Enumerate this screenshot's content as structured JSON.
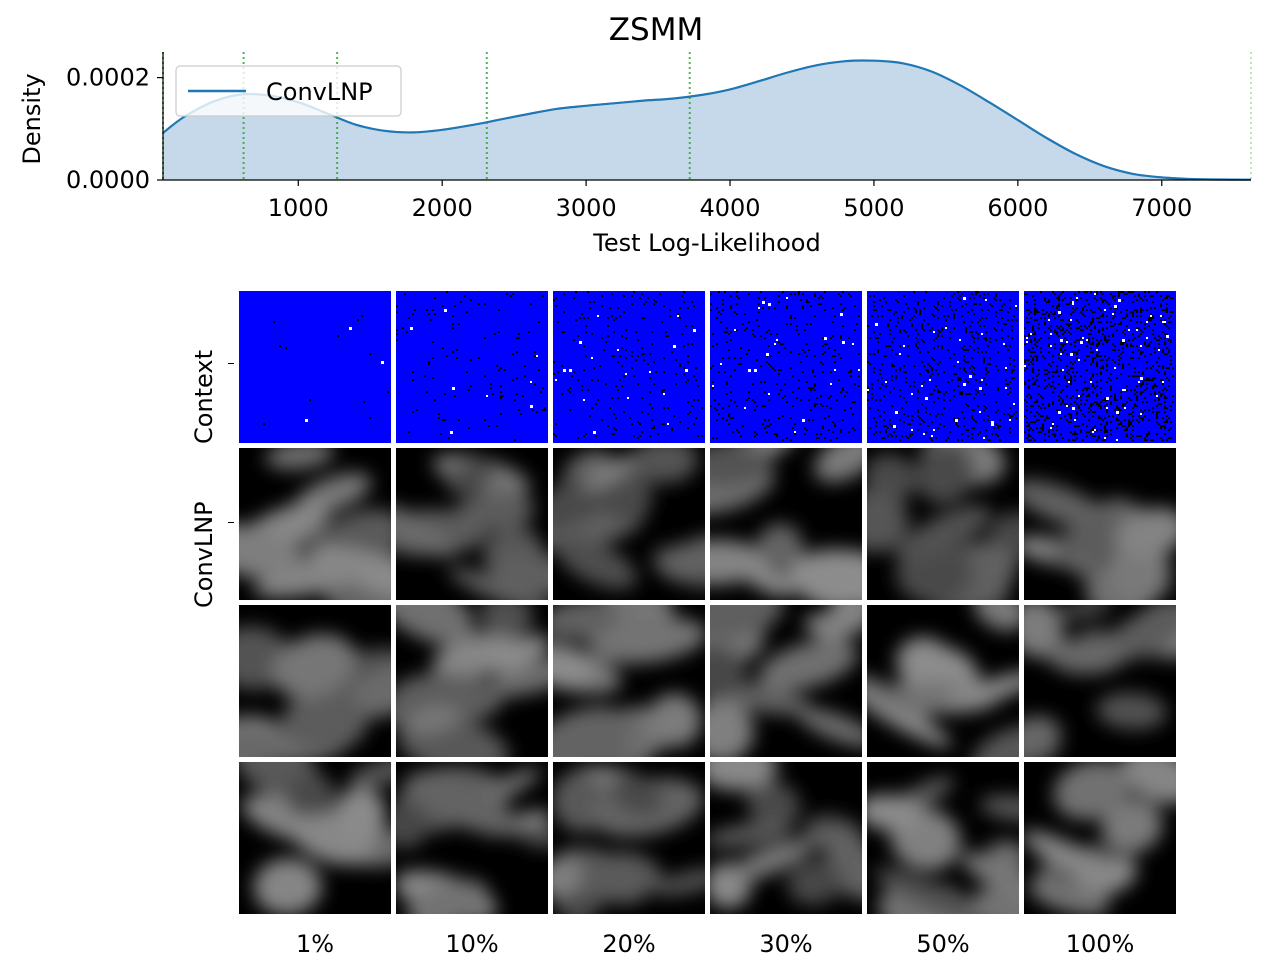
{
  "chart_data": {
    "type": "area",
    "title": "ZSMM",
    "xlabel": "Test Log-Likelihood",
    "ylabel": "Density",
    "xlim": [
      60,
      7620
    ],
    "ylim": [
      0,
      0.00025
    ],
    "xticks": [
      "1000",
      "2000",
      "3000",
      "4000",
      "5000",
      "6000",
      "7000"
    ],
    "xtick_values": [
      1000,
      2000,
      3000,
      4000,
      5000,
      6000,
      7000
    ],
    "yticks": [
      "0.0000",
      "0.0002"
    ],
    "ytick_values": [
      0,
      0.0002
    ],
    "grid": false,
    "legend_position": "top-left",
    "series": [
      {
        "name": "ConvLNP",
        "color": "#1f77b4",
        "x": [
          60,
          200,
          400,
          600,
          800,
          1000,
          1200,
          1400,
          1600,
          1800,
          2000,
          2200,
          2400,
          2600,
          2800,
          3000,
          3200,
          3400,
          3600,
          3800,
          4000,
          4200,
          4400,
          4600,
          4800,
          5000,
          5200,
          5400,
          5600,
          5800,
          6000,
          6200,
          6400,
          6600,
          6800,
          7000,
          7200,
          7400,
          7620
        ],
        "values": [
          9.2e-05,
          0.000122,
          0.000152,
          0.000167,
          0.000165,
          0.000152,
          0.00013,
          0.000108,
          9.6e-05,
          9.3e-05,
          9.8e-05,
          0.000107,
          0.000118,
          0.000129,
          0.000139,
          0.000145,
          0.00015,
          0.000155,
          0.000159,
          0.000166,
          0.000177,
          0.000193,
          0.00021,
          0.000224,
          0.000232,
          0.000233,
          0.000228,
          0.000212,
          0.000185,
          0.000152,
          0.000117,
          8.2e-05,
          5.1e-05,
          2.7e-05,
          1.2e-05,
          5e-06,
          2e-06,
          1e-06,
          5e-07
        ]
      }
    ],
    "vlines": [
      60,
      620,
      1270,
      2310,
      3720,
      7620
    ],
    "vline_color": "#2ca02c",
    "fill_color": "#c5d9eb",
    "image_grid": {
      "columns": [
        "1%",
        "10%",
        "20%",
        "30%",
        "50%",
        "100%"
      ],
      "row_labels": [
        "Context",
        "ConvLNP",
        "",
        ""
      ],
      "context_background": "#0000ff",
      "context_density": [
        0.01,
        0.1,
        0.2,
        0.3,
        0.5,
        1.0
      ]
    }
  }
}
